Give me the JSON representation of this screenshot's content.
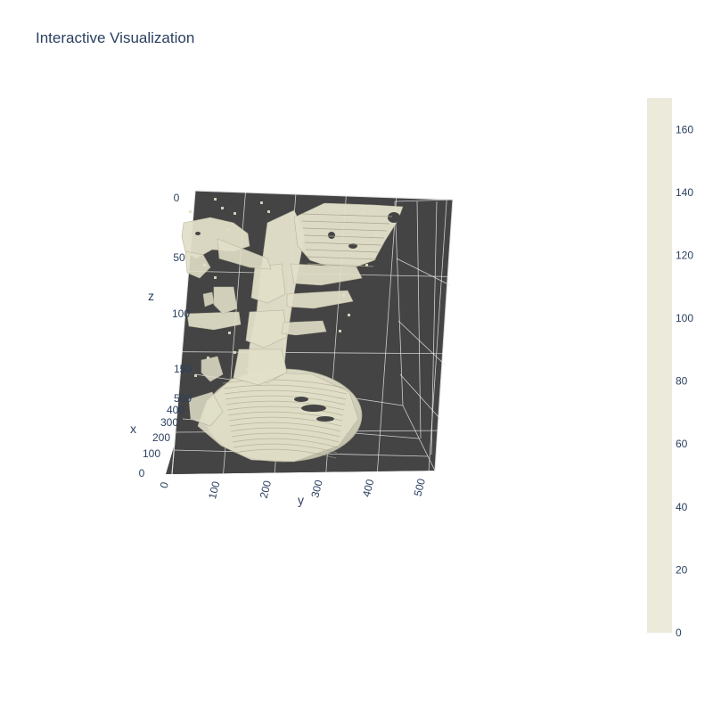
{
  "title": "Interactive Visualization",
  "chart_data": {
    "type": "isosurface",
    "title": "Interactive Visualization",
    "scene_background": "#444444",
    "surface_color": "#e1dfc8",
    "grid_color": "#e6e6e6",
    "axes": {
      "x": {
        "label": "x",
        "range": [
          0,
          512
        ],
        "ticks": [
          "0",
          "100",
          "200",
          "300",
          "400",
          "500"
        ],
        "tick_values": [
          0,
          100,
          200,
          300,
          400,
          500
        ]
      },
      "y": {
        "label": "y",
        "range": [
          0,
          512
        ],
        "ticks": [
          "0",
          "100",
          "200",
          "300",
          "400",
          "500"
        ],
        "tick_values": [
          0,
          100,
          200,
          300,
          400,
          500
        ]
      },
      "z": {
        "label": "z",
        "range": [
          0,
          176
        ],
        "reversed": true,
        "ticks": [
          "0",
          "50",
          "100",
          "150"
        ],
        "tick_values": [
          0,
          50,
          100,
          150
        ]
      }
    },
    "colorbar": {
      "range": [
        0,
        170
      ],
      "color": "#eceadb",
      "ticks": [
        "0",
        "20",
        "40",
        "60",
        "80",
        "100",
        "120",
        "140",
        "160"
      ],
      "tick_values": [
        0,
        20,
        40,
        60,
        80,
        100,
        120,
        140,
        160
      ]
    }
  }
}
